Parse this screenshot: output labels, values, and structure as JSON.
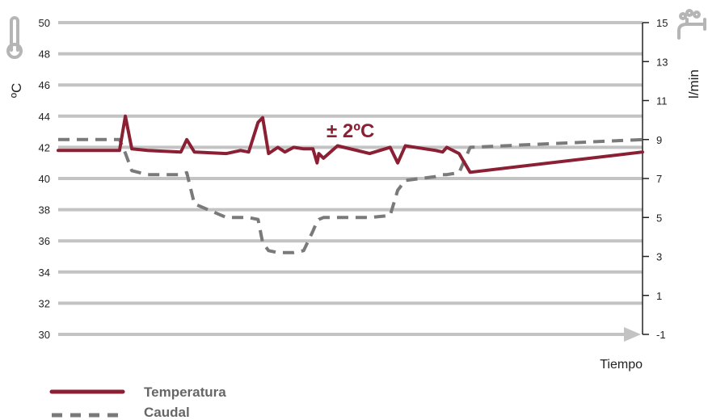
{
  "colors": {
    "temperature": "#8b1f34",
    "flow": "#7a7a7a",
    "grid": "#c3c3c3",
    "icon": "#b5b5b5",
    "legend_text": "#666666"
  },
  "icons": {
    "left_axis": "thermometer-icon",
    "right_axis": "faucet-icon"
  },
  "chart_data": {
    "type": "line",
    "xlabel": "Tiempo",
    "ylabel": "ºC",
    "y2label": "l/min",
    "ylim": [
      30,
      50
    ],
    "y2lim": [
      -1,
      15
    ],
    "yticks": [
      "30",
      "32",
      "34",
      "36",
      "38",
      "40",
      "42",
      "44",
      "46",
      "48",
      "50"
    ],
    "y2ticks": [
      "-1",
      "1",
      "3",
      "5",
      "7",
      "9",
      "11",
      "13",
      "15"
    ],
    "grid": true,
    "annotation": "± 2ºC",
    "legend_position": "bottom-left",
    "series": [
      {
        "name": "Temperatura",
        "axis": "left",
        "style": "solid",
        "x": [
          0,
          10.5,
          11.5,
          12.6,
          15.3,
          21,
          22,
          23.3,
          28.8,
          31.2,
          32.6,
          34.2,
          35,
          36,
          37.6,
          38.8,
          40.3,
          42,
          43.6,
          44.3,
          44.6,
          45.4,
          47.8,
          53.3,
          56.8,
          58.1,
          59.4,
          64.6,
          65.8,
          66.5,
          68.6,
          70.5,
          100
        ],
        "values": [
          41.8,
          41.8,
          44,
          41.9,
          41.8,
          41.7,
          42.5,
          41.7,
          41.6,
          41.8,
          41.7,
          43.6,
          43.9,
          41.6,
          42,
          41.7,
          42,
          41.9,
          41.9,
          41,
          41.6,
          41.3,
          42.1,
          41.6,
          42,
          41,
          42.1,
          41.8,
          41.7,
          42,
          41.6,
          40.4,
          41.7
        ],
        "x_extra_tail": [
          71.6,
          73.9,
          75.7,
          77.2,
          81.6
        ]
      },
      {
        "name": "Caudal",
        "axis": "right",
        "style": "dashed",
        "x": [
          0,
          10.5,
          11.5,
          12.6,
          15.3,
          21,
          22,
          23.3,
          28.8,
          31.2,
          32.6,
          34.2,
          35,
          36,
          37.6,
          38.8,
          40.3,
          42,
          43.6,
          44.3,
          44.6,
          45.4,
          47.8,
          53.3,
          56.8,
          58.1,
          59.4,
          64.6,
          65.8,
          66.5,
          68.6,
          70.5,
          100
        ],
        "values": [
          9,
          9,
          8.3,
          7.4,
          7.2,
          7.2,
          7.3,
          5.7,
          5,
          5,
          5,
          4.9,
          3.7,
          3.3,
          3.2,
          3.2,
          3.2,
          3.3,
          4.3,
          4.8,
          4.9,
          5,
          5,
          5,
          5.1,
          6.4,
          6.9,
          7.1,
          7.2,
          7.2,
          7.3,
          8.6,
          9
        ]
      }
    ]
  }
}
